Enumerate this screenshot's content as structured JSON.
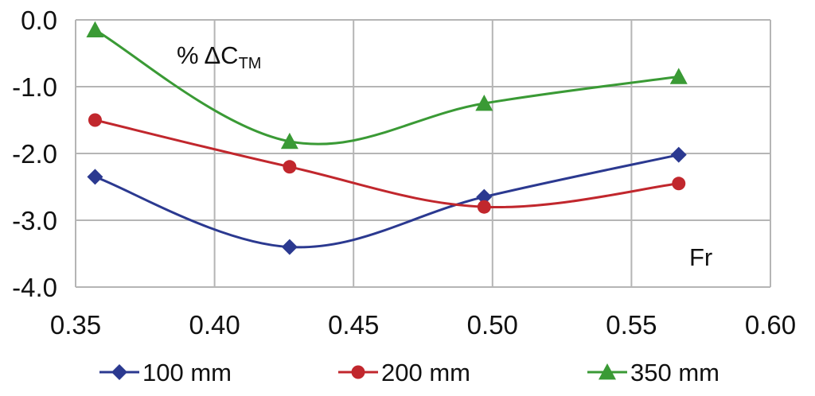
{
  "chart_data": {
    "type": "line",
    "x": [
      0.357,
      0.427,
      0.497,
      0.567
    ],
    "series": [
      {
        "name": "100 mm",
        "values": [
          -2.35,
          -3.4,
          -2.65,
          -2.02
        ],
        "color": "#2b3990",
        "marker": "diamond"
      },
      {
        "name": "200 mm",
        "values": [
          -1.5,
          -2.2,
          -2.8,
          -2.45
        ],
        "color": "#c1272d",
        "marker": "circle"
      },
      {
        "name": "350 mm",
        "values": [
          -0.15,
          -1.82,
          -1.25,
          -0.85
        ],
        "color": "#3a9a35",
        "marker": "triangle"
      }
    ],
    "xlim": [
      0.35,
      0.6
    ],
    "ylim": [
      -4.0,
      0.0
    ],
    "xticks": [
      "0.35",
      "0.40",
      "0.45",
      "0.50",
      "0.55",
      "0.60"
    ],
    "yticks": [
      "0.0",
      "-1.0",
      "-2.0",
      "-3.0",
      "-4.0"
    ],
    "annotations": {
      "ylabel_main": "% ΔC",
      "ylabel_sub": "TM",
      "xlabel": "Fr"
    },
    "grid": true,
    "legend_position": "bottom"
  }
}
